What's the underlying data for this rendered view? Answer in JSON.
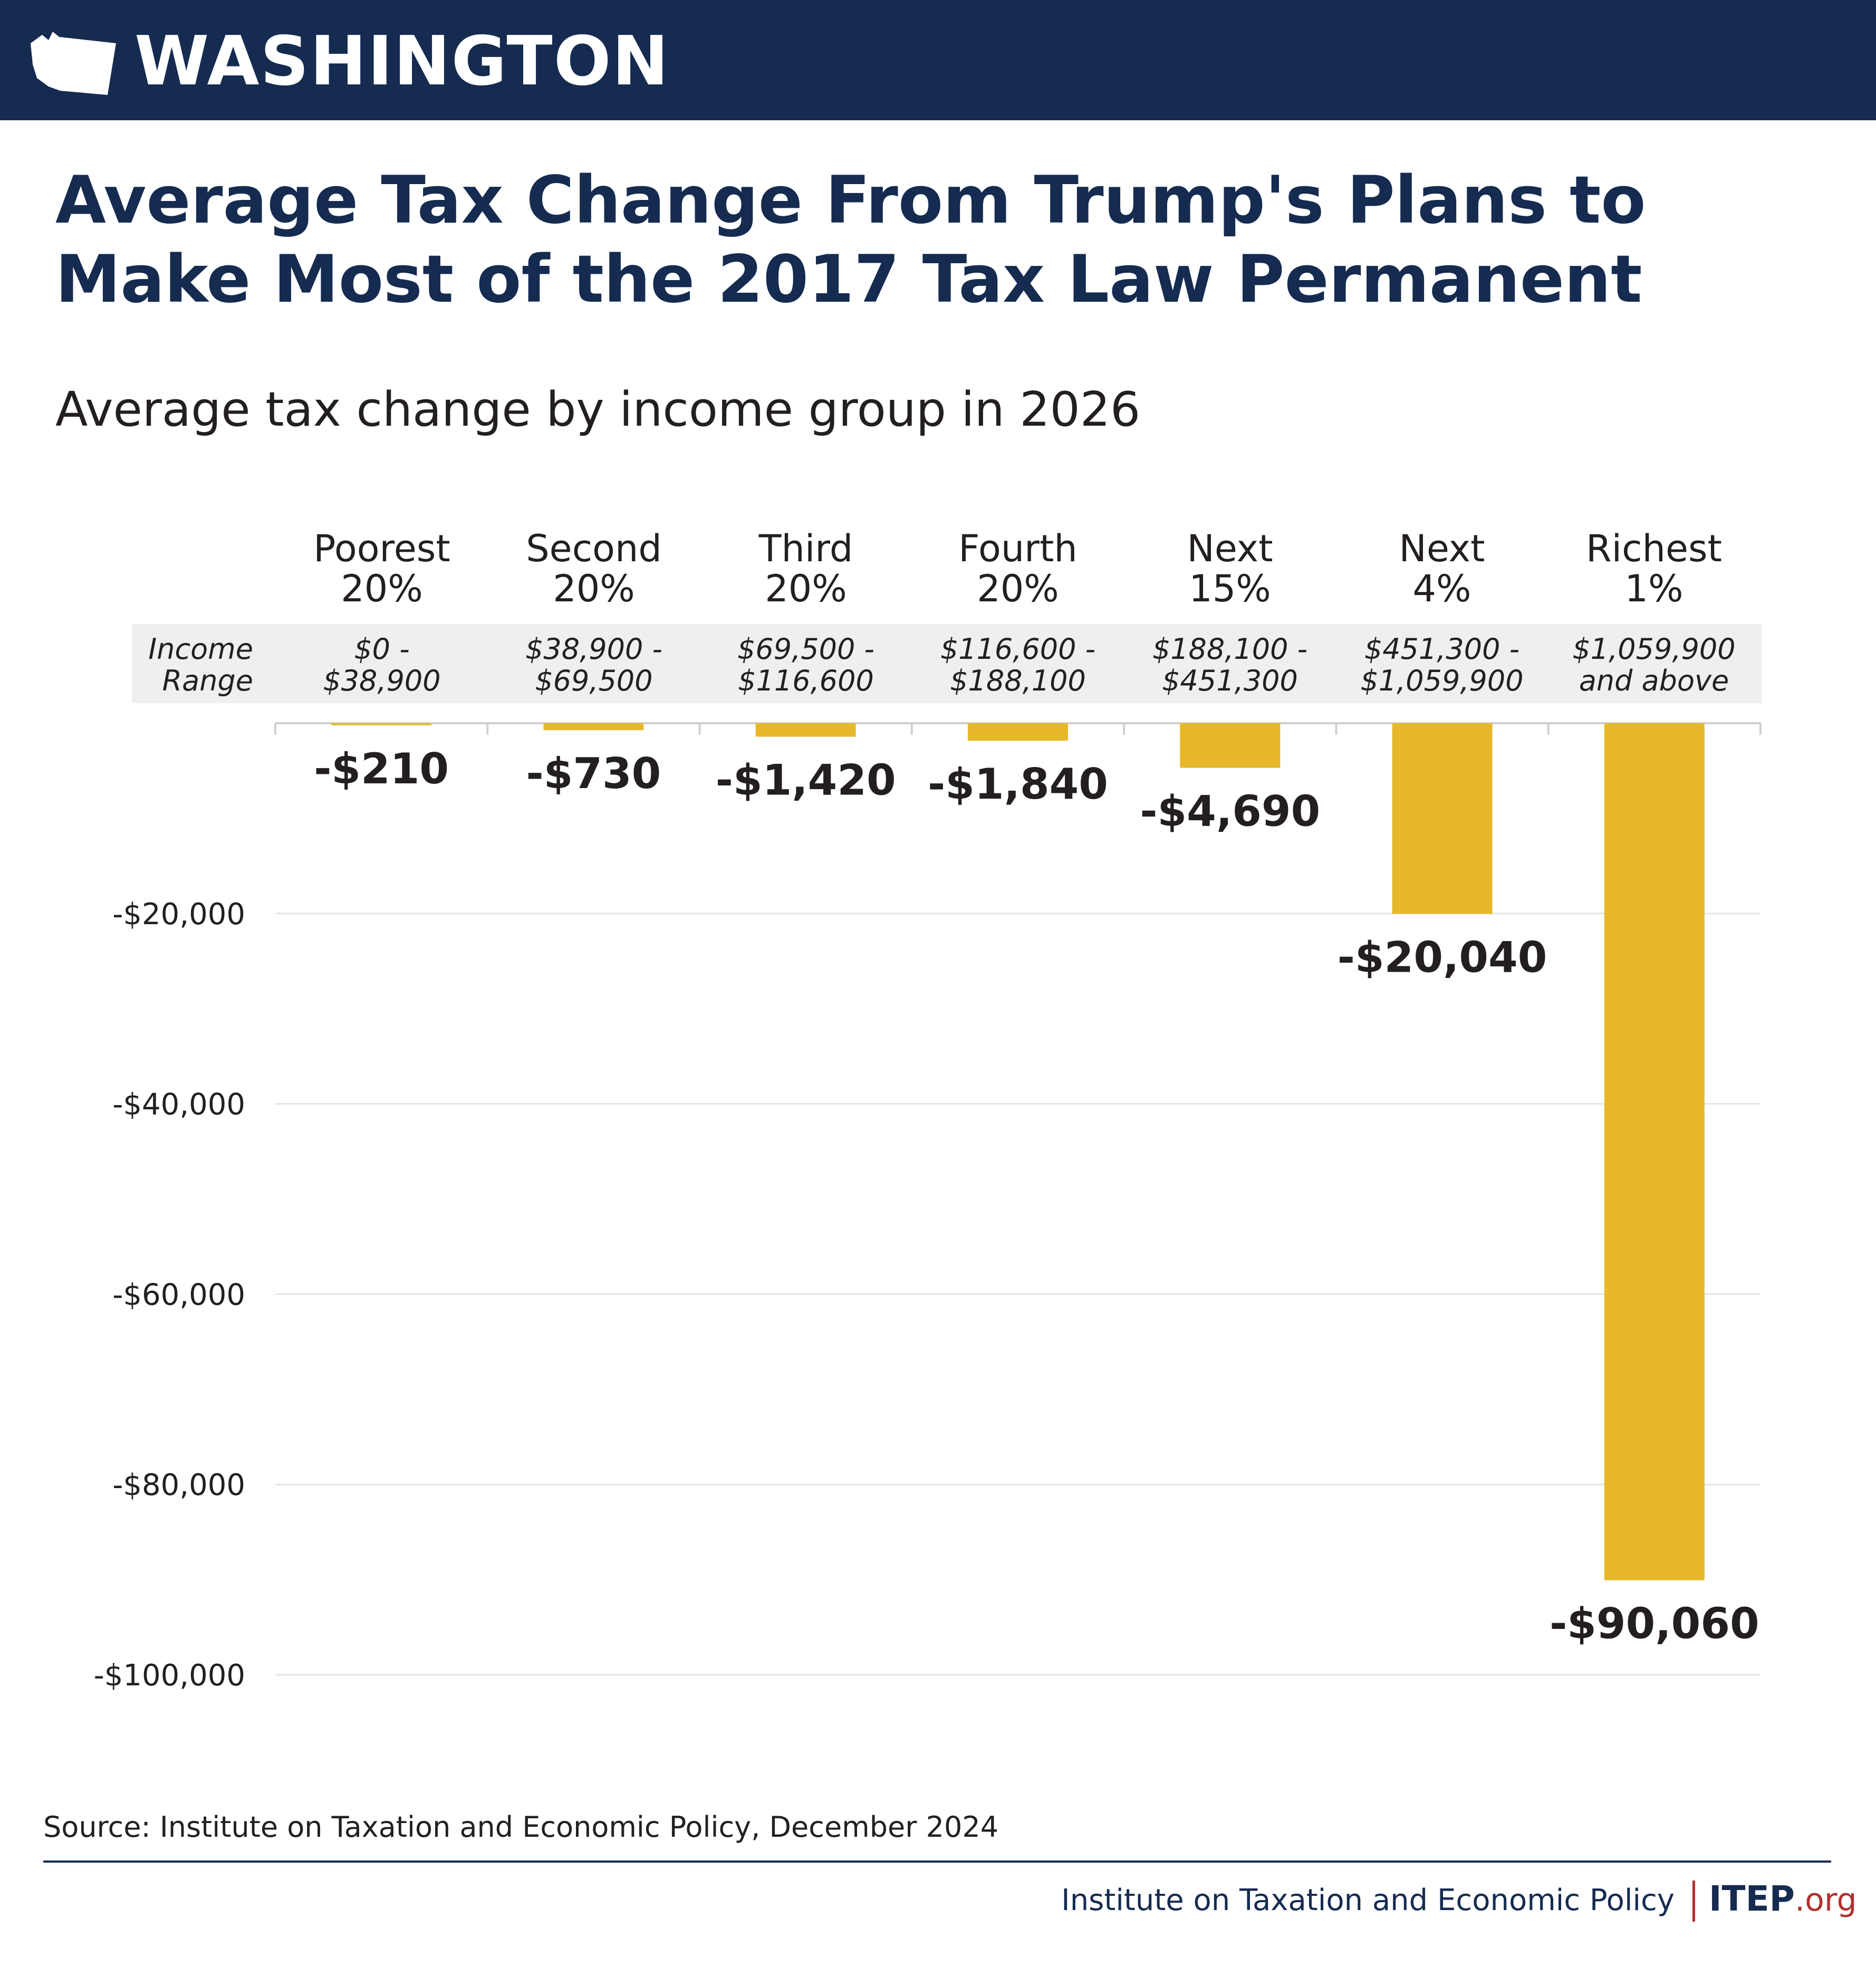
{
  "header": {
    "state": "WASHINGTON",
    "icon": "washington-state-outline-icon"
  },
  "title": "Average Tax Change From Trump's Plans to Make Most of the 2017 Tax Law Permanent",
  "subtitle": "Average tax change by income group in 2026",
  "range_header": [
    "Income",
    "Range"
  ],
  "groups": [
    {
      "label": [
        "Poorest",
        "20%"
      ],
      "range": [
        "$0 -",
        "$38,900"
      ]
    },
    {
      "label": [
        "Second",
        "20%"
      ],
      "range": [
        "$38,900 -",
        "$69,500"
      ]
    },
    {
      "label": [
        "Third",
        "20%"
      ],
      "range": [
        "$69,500 -",
        "$116,600"
      ]
    },
    {
      "label": [
        "Fourth",
        "20%"
      ],
      "range": [
        "$116,600 -",
        "$188,100"
      ]
    },
    {
      "label": [
        "Next",
        "15%"
      ],
      "range": [
        "$188,100 -",
        "$451,300"
      ]
    },
    {
      "label": [
        "Next",
        "4%"
      ],
      "range": [
        "$451,300 -",
        "$1,059,900"
      ]
    },
    {
      "label": [
        "Richest",
        "1%"
      ],
      "range": [
        "$1,059,900",
        "and above"
      ]
    }
  ],
  "chart_data": {
    "type": "bar",
    "categories": [
      "Poorest 20%",
      "Second 20%",
      "Third 20%",
      "Fourth 20%",
      "Next 15%",
      "Next 4%",
      "Richest 1%"
    ],
    "values": [
      -210,
      -730,
      -1420,
      -1840,
      -4690,
      -20040,
      -90060
    ],
    "value_labels": [
      "-$210",
      "-$730",
      "-$1,420",
      "-$1,840",
      "-$4,690",
      "-$20,040",
      "-$90,060"
    ],
    "ylim": [
      -100000,
      0
    ],
    "y_ticks": [
      -20000,
      -40000,
      -60000,
      -80000,
      -100000
    ],
    "y_tick_labels": [
      "-$20,000",
      "-$40,000",
      "-$60,000",
      "-$80,000",
      "-$100,000"
    ],
    "bar_color": "#e6b82a",
    "grid": true,
    "legend": "none"
  },
  "source": "Source: Institute on Taxation and Economic Policy, December 2024",
  "footer": {
    "org": "Institute on Taxation and Economic Policy",
    "logo_main": "ITEP",
    "logo_suffix": ".org"
  },
  "colors": {
    "navy": "#152b50",
    "gold": "#e6b82a",
    "red": "#b0302e",
    "band": "#efefef"
  }
}
